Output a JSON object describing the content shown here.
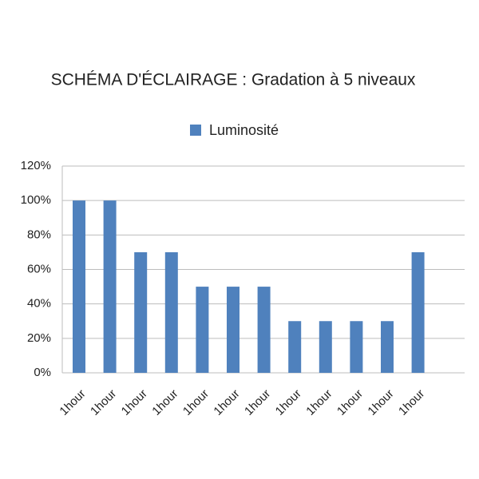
{
  "chart_data": {
    "type": "bar",
    "title": "SCHÉMA D'ÉCLAIRAGE : Gradation à 5 niveaux",
    "categories": [
      "1hour",
      "1hour",
      "1hour",
      "1hour",
      "1hour",
      "1hour",
      "1hour",
      "1hour",
      "1hour",
      "1hour",
      "1hour",
      "1hour"
    ],
    "series": [
      {
        "name": "Luminosité",
        "color": "#4f81bd",
        "values": [
          100,
          100,
          70,
          70,
          50,
          50,
          50,
          30,
          30,
          30,
          30,
          70
        ]
      }
    ],
    "ylim": [
      0,
      120
    ],
    "yticks": [
      {
        "value": 0,
        "label": "0%"
      },
      {
        "value": 20,
        "label": "20%"
      },
      {
        "value": 40,
        "label": "40%"
      },
      {
        "value": 60,
        "label": "60%"
      },
      {
        "value": 80,
        "label": "80%"
      },
      {
        "value": 100,
        "label": "100%"
      },
      {
        "value": 120,
        "label": "120%"
      }
    ],
    "grid": true,
    "legend": "top"
  }
}
